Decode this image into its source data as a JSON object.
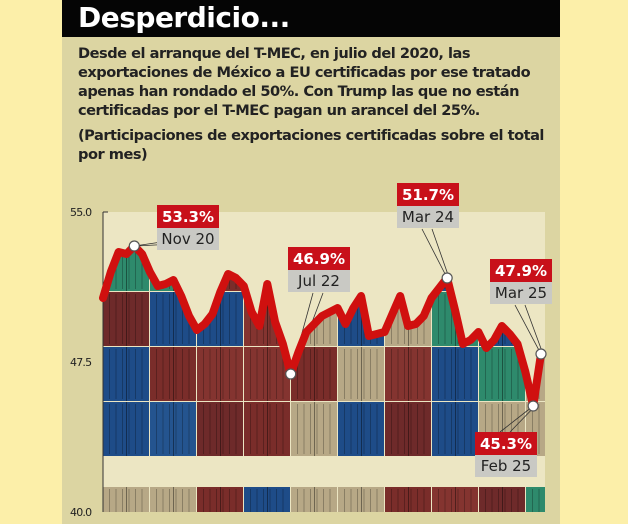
{
  "header": {
    "title": "Desperdicio...",
    "description": "Desde el arranque del T-MEC, en julio del 2020, las exportaciones de México a EU certificadas por ese tratado apenas han rondado el 50%. Con Trump las que no están certificadas por el T-MEC pagan un arancel del 25%.",
    "note": "(Participaciones de exportaciones certificadas sobre el total por mes)"
  },
  "colors": {
    "line": "#d0100f",
    "label_bg": "#c8101a",
    "date_bg": "#c9c9c4",
    "panel": "#dcd5a2",
    "outer": "#fcefa9",
    "title_bar": "#050505"
  },
  "chart_data": {
    "type": "line",
    "title": "",
    "xlabel": "",
    "ylabel": "",
    "ylim": [
      40,
      55
    ],
    "yticks": [
      "55.0",
      "47.5",
      "40.0"
    ],
    "x_start": "Jul 20",
    "x_end": "Mar 25",
    "grid": false,
    "background": "photo of stacked shipping containers",
    "series": [
      {
        "values": [
          50.7,
          52.0,
          53.0,
          52.9,
          53.3,
          52.9,
          52.0,
          51.3,
          51.4,
          51.6,
          50.8,
          49.8,
          49.1,
          49.4,
          49.9,
          51.0,
          51.9,
          51.7,
          51.3,
          50.0,
          49.3,
          51.4,
          49.5,
          48.4,
          46.9,
          48.0,
          49.0,
          49.4,
          49.8,
          50.0,
          50.2,
          49.4,
          50.2,
          50.8,
          48.8,
          48.9,
          49.0,
          49.9,
          50.8,
          49.3,
          49.4,
          49.8,
          50.7,
          51.2,
          51.7,
          50.1,
          48.4,
          48.6,
          49.0,
          48.2,
          48.6,
          49.3,
          48.9,
          48.4,
          47.0,
          45.3,
          47.9
        ]
      }
    ],
    "annotations": [
      {
        "index": 4,
        "value": "53.3%",
        "date": "Nov 20"
      },
      {
        "index": 24,
        "value": "46.9%",
        "date": "Jul 22"
      },
      {
        "index": 44,
        "value": "51.7%",
        "date": "Mar 24"
      },
      {
        "index": 55,
        "value": "45.3%",
        "date": "Feb 25"
      },
      {
        "index": 56,
        "value": "47.9%",
        "date": "Mar 25"
      }
    ]
  }
}
